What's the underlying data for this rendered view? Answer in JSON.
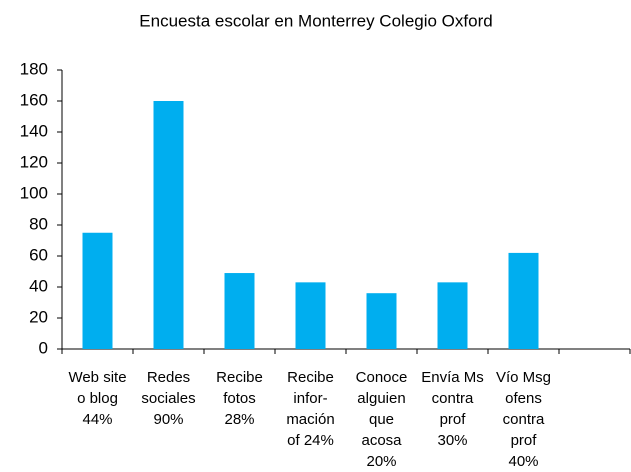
{
  "chart_data": {
    "type": "bar",
    "title": "Encuesta escolar en Monterrey Colegio Oxford",
    "categories": [
      [
        "Web site",
        "o blog",
        "44%"
      ],
      [
        "Redes",
        "sociales",
        "90%"
      ],
      [
        "Recibe",
        "fotos",
        "28%"
      ],
      [
        "Recibe",
        "infor-",
        "mación",
        "of 24%"
      ],
      [
        "Conoce",
        "alguien",
        "que",
        "acosa",
        "20%"
      ],
      [
        "Envía Ms",
        "contra",
        "prof",
        "30%"
      ],
      [
        "Vío Msg",
        "ofens",
        "contra",
        "prof",
        "40%"
      ],
      null
    ],
    "values": [
      75,
      160,
      49,
      43,
      36,
      43,
      62,
      null
    ],
    "color": "#00aeef",
    "ylim": [
      0,
      180
    ],
    "yticks": [
      0,
      20,
      40,
      60,
      80,
      100,
      120,
      140,
      160,
      180
    ],
    "grid": false
  }
}
